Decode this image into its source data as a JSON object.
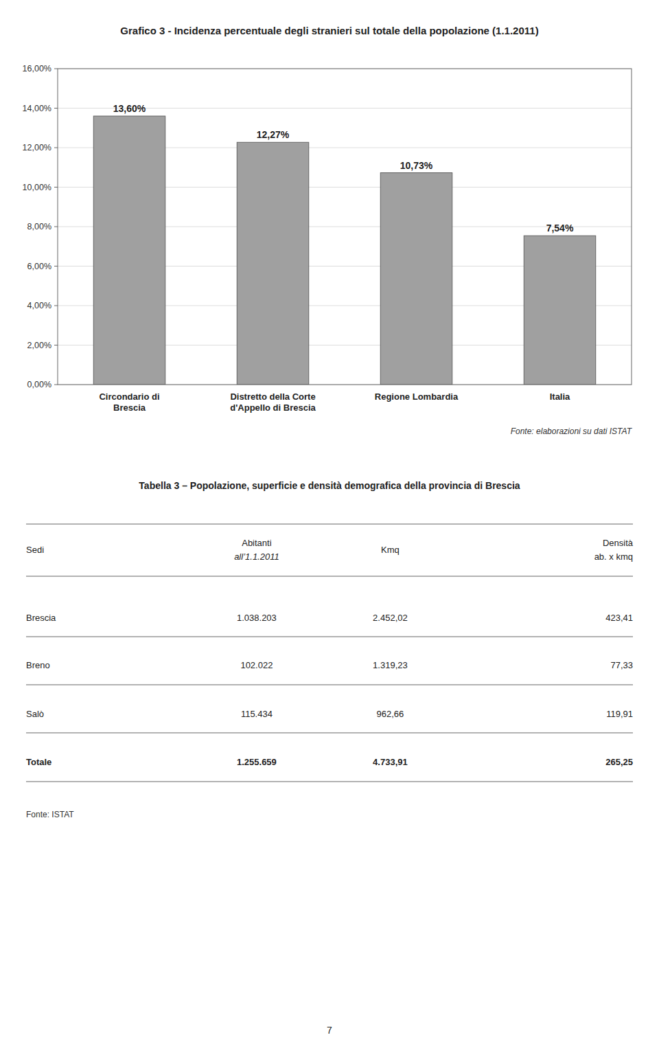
{
  "chart_data": {
    "type": "bar",
    "title": "Grafico 3 - Incidenza percentuale degli stranieri sul totale della popolazione (1.1.2011)",
    "categories": [
      "Circondario di\nBrescia",
      "Distretto della Corte\nd'Appello di Brescia",
      "Regione Lombardia",
      "Italia"
    ],
    "values": [
      13.6,
      12.27,
      10.73,
      7.54
    ],
    "value_labels": [
      "13,60%",
      "12,27%",
      "10,73%",
      "7,54%"
    ],
    "data_labels": true,
    "color": "#a0a0a0",
    "ylim": [
      0,
      16
    ],
    "yticks": [
      {
        "value": 0,
        "label": "0,00%"
      },
      {
        "value": 2,
        "label": "2,00%"
      },
      {
        "value": 4,
        "label": "4,00%"
      },
      {
        "value": 6,
        "label": "6,00%"
      },
      {
        "value": 8,
        "label": "8,00%"
      },
      {
        "value": 10,
        "label": "10,00%"
      },
      {
        "value": 12,
        "label": "12,00%"
      },
      {
        "value": 14,
        "label": "14,00%"
      },
      {
        "value": 16,
        "label": "16,00%"
      }
    ],
    "grid": true,
    "source": "Fonte: elaborazioni su dati ISTAT"
  },
  "table": {
    "title": "Tabella 3 – Popolazione, superficie e densità demografica della provincia di Brescia",
    "columns": [
      [
        "Sedi"
      ],
      [
        "Abitanti",
        "all’1.1.2011"
      ],
      [
        "Kmq"
      ],
      [
        "Densità",
        "ab. x kmq"
      ]
    ],
    "rows": [
      [
        "Brescia",
        "1.038.203",
        "2.452,02",
        "423,41"
      ],
      [
        "Breno",
        "102.022",
        "1.319,23",
        "77,33"
      ],
      [
        "Salò",
        "115.434",
        "962,66",
        "119,91"
      ],
      [
        "Totale",
        "1.255.659",
        "4.733,91",
        "265,25"
      ]
    ],
    "source": "Fonte: ISTAT"
  },
  "page_number": "7"
}
